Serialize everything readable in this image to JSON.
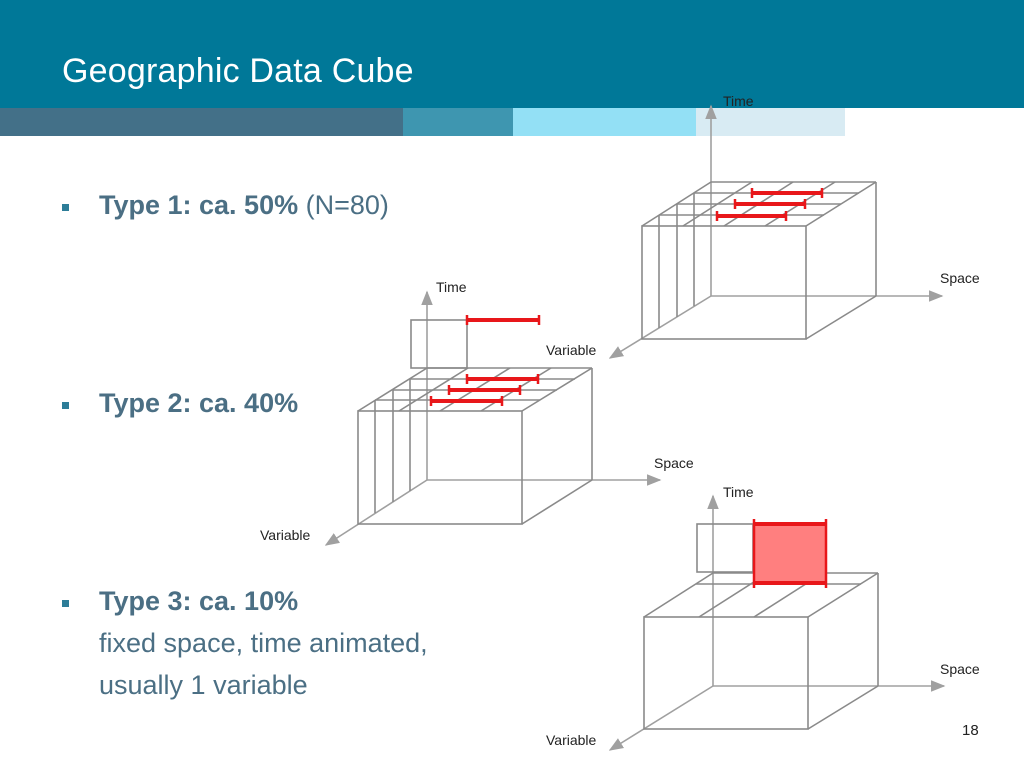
{
  "slide": {
    "title": "Geographic Data Cube",
    "page_number": "18"
  },
  "bullets": [
    {
      "strong": "Type 1: ca. 50%",
      "normal": " (N=80)"
    },
    {
      "strong": "Type 2: ca. 40%",
      "normal": ""
    },
    {
      "strong": "Type 3: ca. 10%",
      "normal": "",
      "sub_lines": [
        "fixed space, time animated,",
        "usually 1 variable"
      ]
    }
  ],
  "cubes": [
    {
      "time_label": "Time",
      "space_label": "Space",
      "variable_label": "Variable"
    },
    {
      "time_label": "Time",
      "space_label": "Space",
      "variable_label": "Variable"
    },
    {
      "time_label": "Time",
      "space_label": "Space",
      "variable_label": "Variable"
    }
  ],
  "colors": {
    "header": "#007898",
    "highlight": "#e8171a",
    "highlight_fill": "#ff7f7f",
    "cube_line": "#8a8a8a"
  }
}
